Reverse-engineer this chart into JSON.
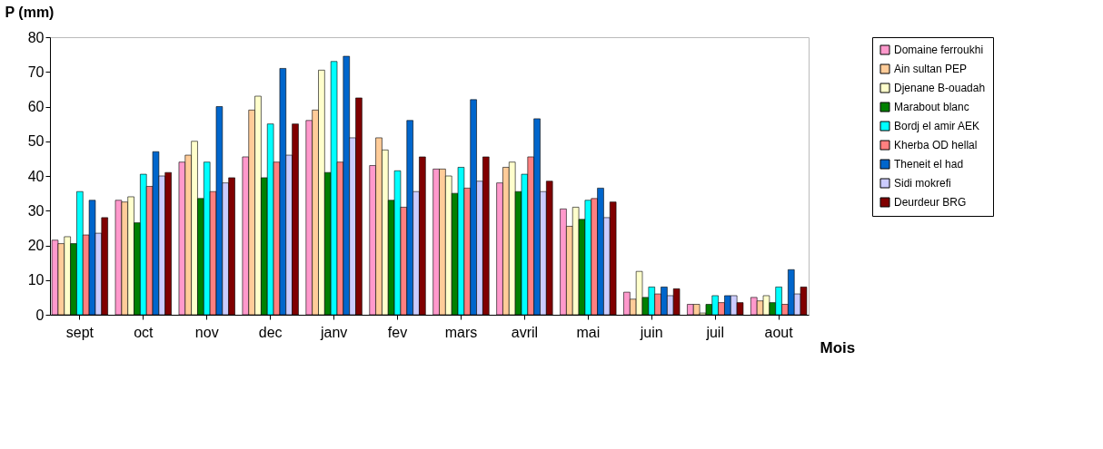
{
  "chart_data": {
    "type": "bar",
    "xlabel": "Mois",
    "ylabel": "P (mm)",
    "categories": [
      "sept",
      "oct",
      "nov",
      "dec",
      "janv",
      "fev",
      "mars",
      "avril",
      "mai",
      "juin",
      "juil",
      "aout"
    ],
    "series": [
      {
        "name": "Domaine ferroukhi",
        "color": "#ff99cc",
        "values": [
          21.5,
          33,
          44,
          45.5,
          56,
          43,
          42,
          38,
          30.5,
          6.5,
          3,
          5
        ]
      },
      {
        "name": "Ain sultan PEP",
        "color": "#ffcc99",
        "values": [
          20.5,
          32.5,
          46,
          59,
          59,
          51,
          42,
          42.5,
          25.5,
          4.5,
          3,
          4
        ]
      },
      {
        "name": "Djenane B-ouadah",
        "color": "#ffffcc",
        "values": [
          22.5,
          34,
          50,
          63,
          70.5,
          47.5,
          40,
          44,
          31,
          12.5,
          0.5,
          5.5
        ]
      },
      {
        "name": "Marabout blanc",
        "color": "#008000",
        "values": [
          20.5,
          26.5,
          33.5,
          39.5,
          41,
          33,
          35,
          35.5,
          27.5,
          5,
          3,
          3.5
        ]
      },
      {
        "name": "Bordj el amir AEK",
        "color": "#00ffff",
        "values": [
          35.5,
          40.5,
          44,
          55,
          73,
          41.5,
          42.5,
          40.5,
          33,
          8,
          5.5,
          8
        ]
      },
      {
        "name": "Kherba OD hellal",
        "color": "#ff8080",
        "values": [
          23,
          37,
          35.5,
          44,
          44,
          31,
          36.5,
          45.5,
          33.5,
          6,
          3.5,
          3
        ]
      },
      {
        "name": "Theneit el had",
        "color": "#0066cc",
        "values": [
          33,
          47,
          60,
          71,
          74.5,
          56,
          62,
          56.5,
          36.5,
          8,
          5.5,
          13
        ]
      },
      {
        "name": "Sidi mokrefi",
        "color": "#ccccff",
        "values": [
          23.5,
          40,
          38,
          46,
          51,
          35.5,
          38.5,
          35.5,
          28,
          5.5,
          5.5,
          6
        ]
      },
      {
        "name": "Deurdeur BRG",
        "color": "#800000",
        "values": [
          28,
          41,
          39.5,
          55,
          62.5,
          45.5,
          45.5,
          38.5,
          32.5,
          7.5,
          3.5,
          8
        ]
      }
    ],
    "ylim": [
      0,
      80
    ],
    "yticks": [
      0,
      10,
      20,
      30,
      40,
      50,
      60,
      70,
      80
    ],
    "grid": false,
    "legend": "right"
  }
}
